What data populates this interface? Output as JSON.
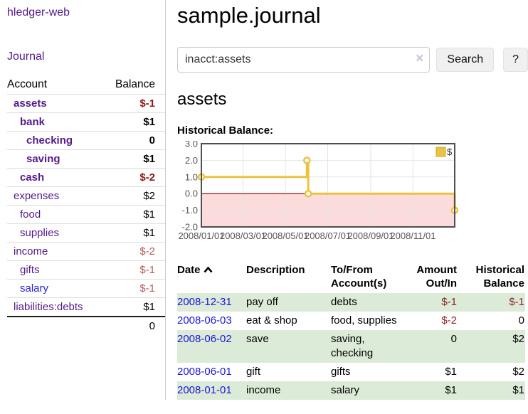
{
  "app": {
    "title": "hledger-web"
  },
  "sidebar": {
    "journal_label": "Journal",
    "accounts_table": {
      "headers": {
        "account": "Account",
        "balance": "Balance"
      },
      "rows": [
        {
          "name": "assets",
          "balance": "$-1",
          "indent": 1,
          "bold": true,
          "neg": "dark"
        },
        {
          "name": "bank",
          "balance": "$1",
          "indent": 2,
          "bold": true,
          "neg": null
        },
        {
          "name": "checking",
          "balance": "0",
          "indent": 3,
          "bold": true,
          "neg": null
        },
        {
          "name": "saving",
          "balance": "$1",
          "indent": 3,
          "bold": true,
          "neg": null
        },
        {
          "name": "cash",
          "balance": "$-2",
          "indent": 2,
          "bold": true,
          "neg": "dark"
        },
        {
          "name": "expenses",
          "balance": "$2",
          "indent": 1,
          "bold": false,
          "neg": null
        },
        {
          "name": "food",
          "balance": "$1",
          "indent": 2,
          "bold": false,
          "neg": null
        },
        {
          "name": "supplies",
          "balance": "$1",
          "indent": 2,
          "bold": false,
          "neg": null
        },
        {
          "name": "income",
          "balance": "$-2",
          "indent": 1,
          "bold": false,
          "neg": "light"
        },
        {
          "name": "gifts",
          "balance": "$-1",
          "indent": 2,
          "bold": false,
          "neg": "light"
        },
        {
          "name": "salary",
          "balance": "$-1",
          "indent": 2,
          "bold": false,
          "neg": "light",
          "link_color": "blue"
        },
        {
          "name": "liabilities:debts",
          "balance": "$1",
          "indent": 1,
          "bold": false,
          "neg": null
        }
      ],
      "total": "0"
    }
  },
  "header": {
    "title": "sample.journal"
  },
  "search": {
    "value": "inacct:assets",
    "clear_icon": "×",
    "button_label": "Search",
    "help_label": "?"
  },
  "account_page": {
    "title": "assets",
    "chart_label": "Historical Balance:"
  },
  "chart_data": {
    "type": "line",
    "steps": true,
    "title": "Historical Balance",
    "xlabel": "",
    "ylabel": "",
    "x_domain_days": [
      0,
      365
    ],
    "ylim": [
      -2,
      3
    ],
    "series": [
      {
        "name": "$",
        "color": "#edc240",
        "points": [
          {
            "date": "2008-01-01",
            "day": 0,
            "value": 1
          },
          {
            "date": "2008-06-01",
            "day": 152,
            "value": 2
          },
          {
            "date": "2008-06-03",
            "day": 154,
            "value": 0
          },
          {
            "date": "2008-12-31",
            "day": 365,
            "value": -1
          }
        ]
      }
    ],
    "xticks": [
      {
        "day": 0,
        "label": "2008/01/01"
      },
      {
        "day": 60,
        "label": "2008/03/01"
      },
      {
        "day": 121,
        "label": "2008/05/01"
      },
      {
        "day": 182,
        "label": "2008/07/01"
      },
      {
        "day": 244,
        "label": "2008/09/01"
      },
      {
        "day": 305,
        "label": "2008/11/01"
      }
    ],
    "yticks": [
      3.0,
      2.0,
      1.0,
      0.0,
      -1.0,
      -2.0
    ],
    "grid_on": true,
    "legend_position": "top-right",
    "legend_label": "$",
    "negative_region_fill": "#fbdbdb",
    "zero_line_color": "#8b0000",
    "grid_color": "#e4e4e4",
    "border_color": "#4f4f4f",
    "tick_label_color": "#545454"
  },
  "register_table": {
    "headers": [
      "Date",
      "Description",
      "To/From Account(s)",
      "Amount Out/In",
      "Historical Balance"
    ],
    "rows": [
      {
        "date": "2008-12-31",
        "description": "pay off",
        "accounts": [
          "debts"
        ],
        "amount": "$-1",
        "balance": "$-1"
      },
      {
        "date": "2008-06-03",
        "description": "eat & shop",
        "accounts": [
          "food",
          "supplies"
        ],
        "amount": "$-2",
        "balance": "0"
      },
      {
        "date": "2008-06-02",
        "description": "save",
        "accounts": [
          "saving",
          "checking"
        ],
        "amount": "0",
        "balance": "$2"
      },
      {
        "date": "2008-06-01",
        "description": "gift",
        "accounts": [
          "gifts"
        ],
        "amount": "$1",
        "balance": "$2"
      },
      {
        "date": "2008-01-01",
        "description": "income",
        "accounts": [
          "salary"
        ],
        "amount": "$1",
        "balance": "$1"
      }
    ]
  }
}
